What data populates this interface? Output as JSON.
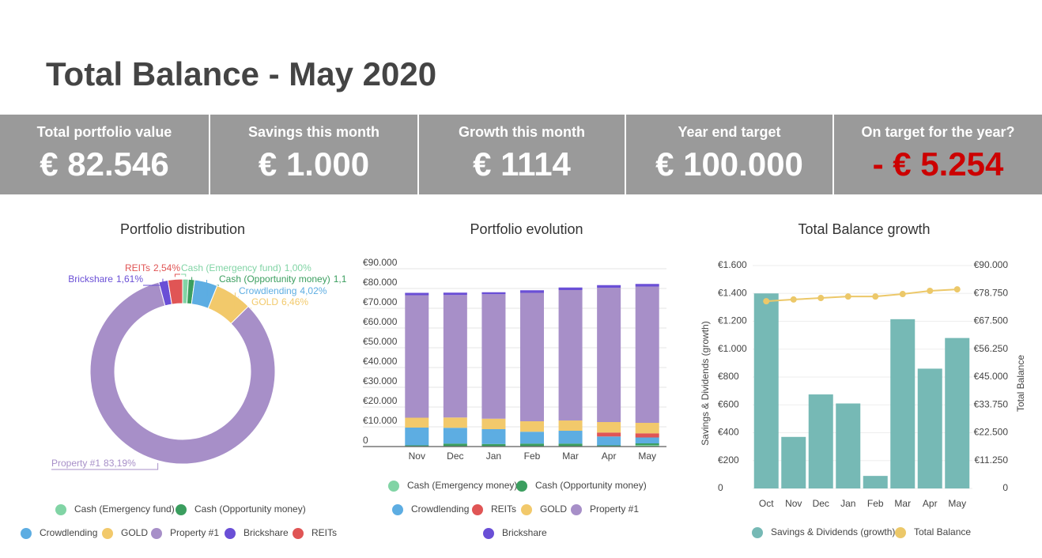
{
  "header": {
    "title": "Total Balance - May 2020"
  },
  "kpis": [
    {
      "label": "Total portfolio value",
      "value": "€ 82.546"
    },
    {
      "label": "Savings this month",
      "value": "€ 1.000"
    },
    {
      "label": "Growth this month",
      "value": "€ 1114"
    },
    {
      "label": "Year end target",
      "value": "€ 100.000"
    },
    {
      "label": "On target for the year?",
      "value": "- € 5.254"
    }
  ],
  "chart_data": [
    {
      "type": "pie",
      "title": "Portfolio distribution",
      "categories": [
        "Cash (Emergency fund)",
        "Cash (Opportunity money)",
        "Crowdlending",
        "GOLD",
        "Property #1",
        "Brickshare",
        "REITs"
      ],
      "values": [
        1.0,
        1.08,
        4.02,
        6.46,
        83.19,
        1.61,
        2.54
      ],
      "value_labels": [
        "1,00%",
        "1,1",
        "4,02%",
        "6,46%",
        "83,19%",
        "1,61%",
        "2,54%"
      ],
      "colors": [
        "#81d4a5",
        "#3b9e5f",
        "#5dade2",
        "#f2c96b",
        "#a78fc8",
        "#6a4fd6",
        "#e05555"
      ],
      "legend": "bottom"
    },
    {
      "type": "stacked",
      "title": "Portfolio evolution",
      "categories": [
        "Nov",
        "Dec",
        "Jan",
        "Feb",
        "Mar",
        "Apr",
        "May"
      ],
      "series": [
        {
          "name": "Cash (Emergency money)",
          "color": "#81d4a5",
          "values": [
            300,
            300,
            300,
            300,
            300,
            300,
            800
          ]
        },
        {
          "name": "Cash (Opportunity money)",
          "color": "#3b9e5f",
          "values": [
            300,
            1200,
            1000,
            1200,
            1200,
            300,
            800
          ]
        },
        {
          "name": "Crowdlending",
          "color": "#5dade2",
          "values": [
            9000,
            8000,
            7500,
            6000,
            6500,
            4500,
            3000
          ]
        },
        {
          "name": "REITs",
          "color": "#e05555",
          "values": [
            0,
            0,
            0,
            0,
            0,
            2000,
            2100
          ]
        },
        {
          "name": "GOLD",
          "color": "#f2c96b",
          "values": [
            5000,
            5200,
            5300,
            5300,
            5200,
            5300,
            5300
          ]
        },
        {
          "name": "Property #1",
          "color": "#a78fc8",
          "values": [
            62000,
            62000,
            63000,
            65000,
            66000,
            68000,
            69000
          ]
        },
        {
          "name": "Brickshare",
          "color": "#6a4fd6",
          "values": [
            1200,
            1200,
            1000,
            1300,
            1300,
            1300,
            1300
          ]
        }
      ],
      "ylim": [
        0,
        90000
      ],
      "yticks": [
        0,
        {
          "value": 10000,
          "label": "€10.000"
        },
        {
          "value": 20000,
          "label": "€20.000"
        },
        {
          "value": 30000,
          "label": "€30.000"
        },
        {
          "value": 40000,
          "label": "€40.000"
        },
        {
          "value": 50000,
          "label": "€50.000"
        },
        {
          "value": 60000,
          "label": "€60.000"
        },
        {
          "value": 70000,
          "label": "€70.000"
        },
        {
          "value": 80000,
          "label": "€80.000"
        },
        {
          "value": 90000,
          "label": "€90.000"
        }
      ],
      "grid": true,
      "legend": "bottom"
    },
    {
      "type": "combo",
      "title": "Total Balance growth",
      "categories": [
        "Oct",
        "Nov",
        "Dec",
        "Jan",
        "Feb",
        "Mar",
        "Apr",
        "May"
      ],
      "y_label": "Savings & Dividends (growth)",
      "y2_label": "Total Balance",
      "series": [
        {
          "name": "Savings & Dividends (growth)",
          "color": "#76b9b5",
          "values": [
            1400,
            370,
            675,
            610,
            90,
            1215,
            860,
            1080
          ]
        },
        {
          "name": "Total Balance",
          "color": "#ecc869",
          "axis": "y2",
          "values": [
            75600,
            76300,
            76900,
            77500,
            77500,
            78500,
            79800,
            80400
          ]
        }
      ],
      "ylim": [
        0,
        1600
      ],
      "yticks": [
        0,
        {
          "value": 200,
          "label": "€200"
        },
        {
          "value": 400,
          "label": "€400"
        },
        {
          "value": 600,
          "label": "€600"
        },
        {
          "value": 800,
          "label": "€800"
        },
        {
          "value": 1000,
          "label": "€1.000"
        },
        {
          "value": 1200,
          "label": "€1.200"
        },
        {
          "value": 1400,
          "label": "€1.400"
        },
        {
          "value": 1600,
          "label": "€1.600"
        }
      ],
      "y2lim": [
        0,
        90000
      ],
      "y2ticks": [
        0,
        {
          "value": 11250,
          "label": "€11.250"
        },
        {
          "value": 22500,
          "label": "€22.500"
        },
        {
          "value": 33750,
          "label": "€33.750"
        },
        {
          "value": 45000,
          "label": "€45.000"
        },
        {
          "value": 56250,
          "label": "€56.250"
        },
        {
          "value": 67500,
          "label": "€67.500"
        },
        {
          "value": 78750,
          "label": "€78.750"
        },
        {
          "value": 90000,
          "label": "€90.000"
        }
      ],
      "grid": true,
      "legend": "bottom"
    }
  ]
}
